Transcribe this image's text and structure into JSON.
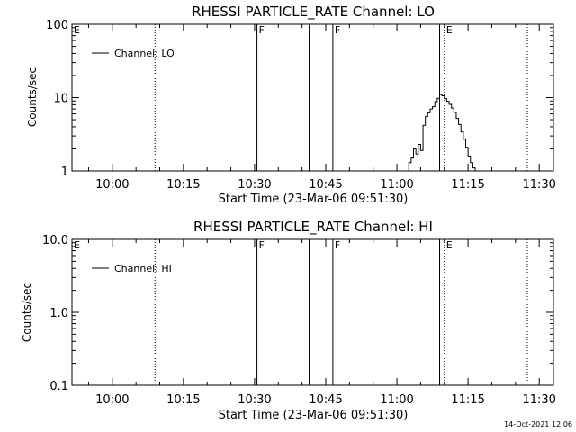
{
  "footer": {
    "timestamp": "14-Oct-2021 12:06"
  },
  "chart_data": [
    {
      "type": "line",
      "title": "RHESSI PARTICLE_RATE Channel: LO",
      "xlabel": "Start Time (23-Mar-06 09:51:30)",
      "ylabel": "Counts/sec",
      "y_scale": "log",
      "xlim": [
        "09:51:30",
        "11:33:00"
      ],
      "ylim": [
        1,
        100
      ],
      "x_ticks": [
        "10:00",
        "10:15",
        "10:30",
        "10:45",
        "11:00",
        "11:15",
        "11:30"
      ],
      "y_ticks": [
        "1",
        "10",
        "100"
      ],
      "legend": {
        "position": "top-left",
        "entries": [
          "Channel: LO"
        ]
      },
      "series": [
        {
          "name": "Channel: LO",
          "x": [
            "11:02:00",
            "11:02:30",
            "11:03:00",
            "11:03:30",
            "11:04:00",
            "11:04:30",
            "11:05:00",
            "11:05:30",
            "11:06:00",
            "11:06:30",
            "11:07:00",
            "11:07:30",
            "11:08:00",
            "11:08:30",
            "11:09:00",
            "11:09:30",
            "11:10:00",
            "11:10:30",
            "11:11:00",
            "11:11:30",
            "11:12:00",
            "11:12:30",
            "11:13:00",
            "11:13:30",
            "11:14:00",
            "11:14:30",
            "11:15:00",
            "11:15:30",
            "11:16:00",
            "11:16:30",
            "11:17:00"
          ],
          "values": [
            1.0,
            1.3,
            1.5,
            2.0,
            1.7,
            2.3,
            1.9,
            4.2,
            5.5,
            6.2,
            7.0,
            7.5,
            8.8,
            9.8,
            11.0,
            10.6,
            9.7,
            8.9,
            8.1,
            7.2,
            6.3,
            5.2,
            4.3,
            3.4,
            2.7,
            2.1,
            1.6,
            1.3,
            1.1,
            1.0,
            1.0
          ]
        }
      ],
      "annotations": [
        {
          "time": "10:09:00",
          "style": "dotted",
          "label": ""
        },
        {
          "time": "10:30:30",
          "style": "solid",
          "label": "F"
        },
        {
          "time": "10:41:30",
          "style": "solid",
          "label": ""
        },
        {
          "time": "10:46:30",
          "style": "solid",
          "label": "F"
        },
        {
          "time": "11:09:00",
          "style": "solid",
          "label": ""
        },
        {
          "time": "11:10:00",
          "style": "dotted",
          "label": "E"
        },
        {
          "time": "11:27:30",
          "style": "dotted",
          "label": ""
        }
      ],
      "edge_labels": [
        "E"
      ]
    },
    {
      "type": "line",
      "title": "RHESSI PARTICLE_RATE Channel: HI",
      "xlabel": "Start Time (23-Mar-06 09:51:30)",
      "ylabel": "Counts/sec",
      "y_scale": "log",
      "xlim": [
        "09:51:30",
        "11:33:00"
      ],
      "ylim": [
        0.1,
        10.0
      ],
      "x_ticks": [
        "10:00",
        "10:15",
        "10:30",
        "10:45",
        "11:00",
        "11:15",
        "11:30"
      ],
      "y_ticks": [
        "0.1",
        "1.0",
        "10.0"
      ],
      "legend": {
        "position": "top-left",
        "entries": [
          "Channel: HI"
        ]
      },
      "series": [
        {
          "name": "Channel: HI",
          "x": [],
          "values": []
        }
      ],
      "annotations": [
        {
          "time": "10:09:00",
          "style": "dotted",
          "label": ""
        },
        {
          "time": "10:30:30",
          "style": "solid",
          "label": "F"
        },
        {
          "time": "10:41:30",
          "style": "solid",
          "label": ""
        },
        {
          "time": "10:46:30",
          "style": "solid",
          "label": "F"
        },
        {
          "time": "11:09:00",
          "style": "solid",
          "label": ""
        },
        {
          "time": "11:10:00",
          "style": "dotted",
          "label": "E"
        },
        {
          "time": "11:27:30",
          "style": "dotted",
          "label": ""
        }
      ],
      "edge_labels": [
        "E"
      ]
    }
  ]
}
